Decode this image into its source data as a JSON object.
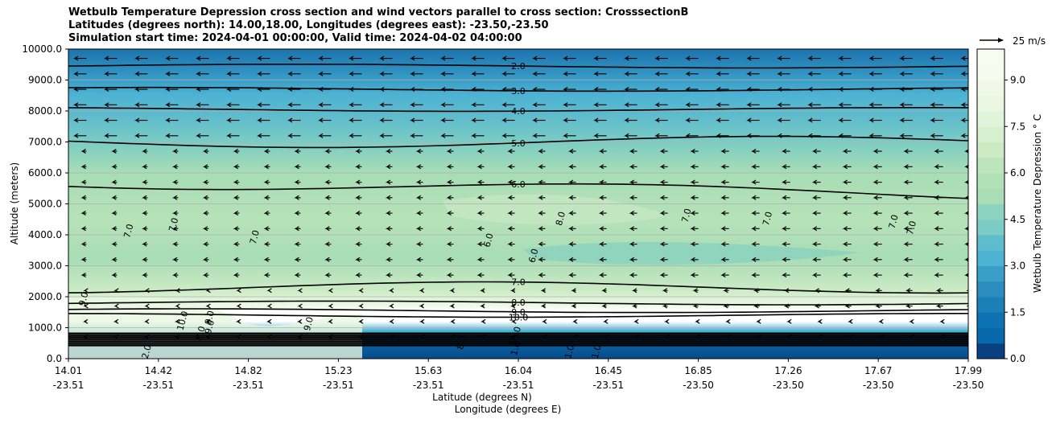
{
  "chart_data": {
    "type": "contour",
    "title_lines": [
      "Wetbulb Temperature Depression cross section and wind vectors parallel to cross section: CrosssectionB",
      "Latitudes (degrees north): 14.00,18.00, Longitudes (degrees east): -23.50,-23.50",
      "Simulation start time: 2024-04-01 00:00:00, Valid time: 2024-04-02 04:00:00"
    ],
    "ylabel": "Altitude (meters)",
    "xlabel_lat": "Latitude (degrees N)",
    "xlabel_lon": "Longitude (degrees E)",
    "ylim": [
      0,
      10000
    ],
    "yticks": [
      0,
      1000,
      2000,
      3000,
      4000,
      5000,
      6000,
      7000,
      8000,
      9000,
      10000
    ],
    "ytick_labels": [
      "0.0",
      "1000.0",
      "2000.0",
      "3000.0",
      "4000.0",
      "5000.0",
      "6000.0",
      "7000.0",
      "8000.0",
      "9000.0",
      "10000.0"
    ],
    "xlim": [
      0,
      1
    ],
    "xticks": [
      {
        "pos": 0.0,
        "lat": "14.01",
        "lon": "-23.51"
      },
      {
        "pos": 0.1,
        "lat": "14.42",
        "lon": "-23.51"
      },
      {
        "pos": 0.2,
        "lat": "14.82",
        "lon": "-23.51"
      },
      {
        "pos": 0.3,
        "lat": "15.23",
        "lon": "-23.51"
      },
      {
        "pos": 0.4,
        "lat": "15.63",
        "lon": "-23.51"
      },
      {
        "pos": 0.5,
        "lat": "16.04",
        "lon": "-23.51"
      },
      {
        "pos": 0.6,
        "lat": "16.45",
        "lon": "-23.51"
      },
      {
        "pos": 0.7,
        "lat": "16.85",
        "lon": "-23.50"
      },
      {
        "pos": 0.8,
        "lat": "17.26",
        "lon": "-23.50"
      },
      {
        "pos": 0.9,
        "lat": "17.67",
        "lon": "-23.50"
      },
      {
        "pos": 1.0,
        "lat": "17.99",
        "lon": "-23.50"
      }
    ],
    "colorbar": {
      "label": "Wetbulb Temperature Depression ° C",
      "range": [
        0,
        10
      ],
      "ticks": [
        0,
        1.5,
        3,
        4.5,
        6,
        7.5,
        9
      ],
      "tick_labels": [
        "0.0",
        "1.5",
        "3.0",
        "4.5",
        "6.0",
        "7.5",
        "9.0"
      ],
      "levels": 20
    },
    "quiver_key": {
      "label": "25 m/s",
      "speed": 25
    },
    "contour_lines": [
      {
        "level": 2,
        "label": "2.0",
        "alt": 9450,
        "label_pos": 0.5
      },
      {
        "level": 3,
        "label": "3.0",
        "alt": 8700,
        "label_pos": 0.5
      },
      {
        "level": 4,
        "label": "4.0",
        "alt": 8050,
        "label_pos": 0.5
      },
      {
        "level": 5,
        "label": "5.0",
        "alt": 7000,
        "label_pos": 0.5
      },
      {
        "level": 6,
        "label": "6.0",
        "alt": 5700,
        "label_pos": 0.5
      },
      {
        "level": 7,
        "label": "7.0",
        "alt": 2300,
        "label_pos": 0.5
      },
      {
        "level": 8,
        "label": "8.0",
        "alt": 1800,
        "label_pos": 0.5
      },
      {
        "level": 9,
        "label": "9.0",
        "alt": 1550,
        "label_pos": 0.5
      },
      {
        "level": 10,
        "label": "10.0",
        "alt": 1400,
        "label_pos": 0.5
      }
    ],
    "extra_labels": [
      "7.0",
      "7.0",
      "7.0",
      "7.0",
      "8.0",
      "7.0",
      "7.0",
      "7.0",
      "6.0",
      "6.0",
      "9.0",
      "10.0",
      "9.0",
      "8.0",
      "9.0",
      "10.0",
      "8.0",
      "1.0",
      "1.0",
      "1.0",
      "2.0",
      "9.0"
    ]
  }
}
